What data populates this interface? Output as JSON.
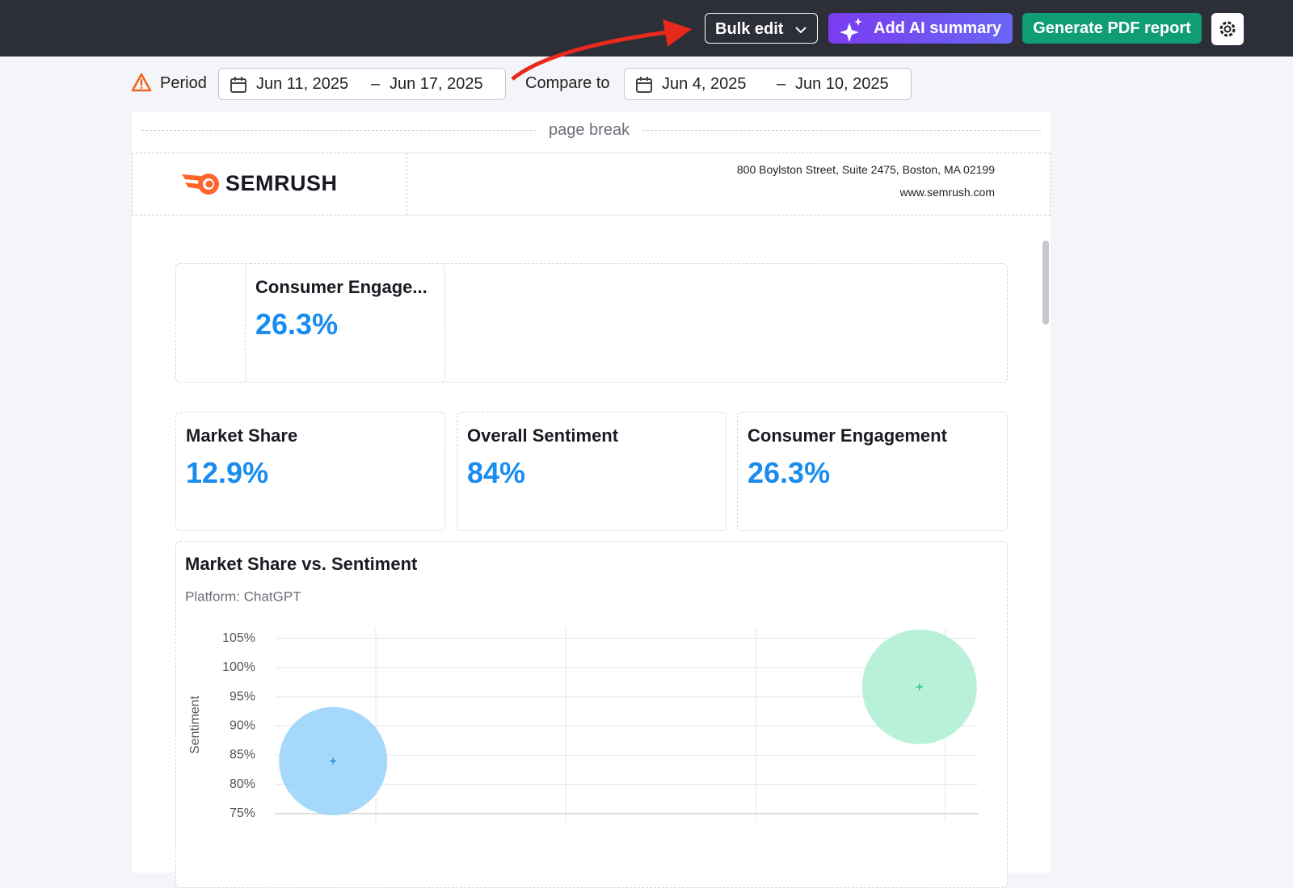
{
  "toolbar": {
    "bulk_edit": "Bulk edit",
    "ai_summary": "Add AI summary",
    "pdf_report": "Generate PDF report"
  },
  "period": {
    "label": "Period",
    "start": "Jun 11, 2025",
    "separator": "–",
    "end": "Jun 17, 2025",
    "compare_label": "Compare to",
    "compare_start": "Jun 4, 2025",
    "compare_end": "Jun 10, 2025"
  },
  "report": {
    "page_break": "page break",
    "brand": "SEMRUSH",
    "address": "800 Boylston Street, Suite 2475, Boston, MA 02199",
    "website": "www.semrush.com"
  },
  "widgets": [
    {
      "title": "Consumer Engage...",
      "value": "26.3%"
    },
    {
      "title": "Market Share",
      "value": "12.9%"
    },
    {
      "title": "Overall Sentiment",
      "value": "84%"
    },
    {
      "title": "Consumer Engagement",
      "value": "26.3%"
    }
  ],
  "chart_data": {
    "type": "bubble",
    "title": "Market Share vs. Sentiment",
    "subtitle": "Platform: ChatGPT",
    "y_label": "Sentiment",
    "xlim": [
      0,
      100
    ],
    "ylim": [
      73.6,
      106.9
    ],
    "yticks": [
      {
        "value": 105,
        "label": "105%"
      },
      {
        "value": 100,
        "label": "100%"
      },
      {
        "value": 95,
        "label": "95%"
      },
      {
        "value": 90,
        "label": "90%"
      },
      {
        "value": 85,
        "label": "85%"
      },
      {
        "value": 80,
        "label": "80%"
      },
      {
        "value": 75,
        "label": "75%"
      }
    ],
    "grid": true,
    "series": [
      {
        "color": "#8fd0fb",
        "x": [
          8.3
        ],
        "values": [
          84
        ],
        "sizes": [
          67
        ]
      },
      {
        "color": "#a8ecd0",
        "x": [
          91.7
        ],
        "values": [
          96.7
        ],
        "sizes": [
          71
        ]
      }
    ]
  }
}
